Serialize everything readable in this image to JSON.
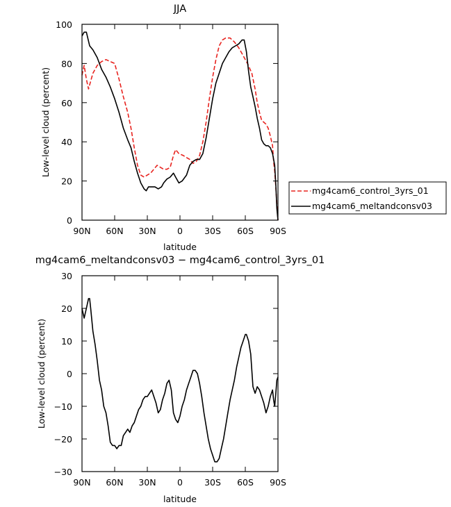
{
  "chart_data": [
    {
      "type": "line",
      "title": "JJA",
      "xlabel": "latitude",
      "ylabel": "Low-level cloud (percent)",
      "xlim": [
        90,
        -90
      ],
      "ylim": [
        0,
        100
      ],
      "xticks": [
        90,
        60,
        30,
        0,
        -30,
        -60,
        -90
      ],
      "xtick_labels": [
        "90N",
        "60N",
        "30N",
        "0",
        "30S",
        "60S",
        "90S"
      ],
      "yticks": [
        0,
        20,
        40,
        60,
        80,
        100
      ],
      "ytick_labels": [
        "0",
        "20",
        "40",
        "60",
        "80",
        "100"
      ],
      "legend_position": "right",
      "series": [
        {
          "name": "mg4cam6_control_3yrs_01",
          "color": "#e8231f",
          "style": "dashed",
          "points": [
            [
              90,
              74
            ],
            [
              88,
              79
            ],
            [
              86,
              72
            ],
            [
              84,
              67
            ],
            [
              82,
              71
            ],
            [
              80,
              75
            ],
            [
              76,
              79
            ],
            [
              72,
              81
            ],
            [
              68,
              82
            ],
            [
              64,
              81
            ],
            [
              60,
              80
            ],
            [
              56,
              72
            ],
            [
              52,
              63
            ],
            [
              48,
              55
            ],
            [
              45,
              47
            ],
            [
              42,
              37
            ],
            [
              39,
              28
            ],
            [
              36,
              23
            ],
            [
              33,
              22
            ],
            [
              30,
              23
            ],
            [
              27,
              24
            ],
            [
              24,
              26
            ],
            [
              21,
              28
            ],
            [
              18,
              27
            ],
            [
              15,
              26
            ],
            [
              12,
              26
            ],
            [
              9,
              27
            ],
            [
              6,
              33
            ],
            [
              4,
              36
            ],
            [
              1,
              34
            ],
            [
              -3,
              33
            ],
            [
              -6,
              32
            ],
            [
              -9,
              31
            ],
            [
              -12,
              29
            ],
            [
              -15,
              30
            ],
            [
              -18,
              33
            ],
            [
              -21,
              40
            ],
            [
              -24,
              50
            ],
            [
              -27,
              62
            ],
            [
              -30,
              73
            ],
            [
              -33,
              82
            ],
            [
              -36,
              89
            ],
            [
              -39,
              92
            ],
            [
              -42,
              93
            ],
            [
              -46,
              93
            ],
            [
              -50,
              91
            ],
            [
              -54,
              88
            ],
            [
              -58,
              84
            ],
            [
              -62,
              80
            ],
            [
              -66,
              75
            ],
            [
              -69,
              67
            ],
            [
              -71,
              60
            ],
            [
              -73,
              55
            ],
            [
              -75,
              51
            ],
            [
              -77,
              50
            ],
            [
              -79,
              49
            ],
            [
              -81,
              47
            ],
            [
              -83,
              43
            ],
            [
              -85,
              38
            ],
            [
              -86,
              30
            ],
            [
              -87,
              25
            ],
            [
              -88,
              17
            ],
            [
              -89,
              8
            ],
            [
              -90,
              0
            ]
          ]
        },
        {
          "name": "mg4cam6_meltandconsv03",
          "color": "#000000",
          "style": "solid",
          "points": [
            [
              90,
              94
            ],
            [
              88,
              96
            ],
            [
              86,
              96
            ],
            [
              83,
              89
            ],
            [
              80,
              87
            ],
            [
              76,
              83
            ],
            [
              72,
              77
            ],
            [
              68,
              73
            ],
            [
              64,
              68
            ],
            [
              60,
              62
            ],
            [
              56,
              55
            ],
            [
              52,
              47
            ],
            [
              48,
              41
            ],
            [
              45,
              37
            ],
            [
              42,
              30
            ],
            [
              39,
              24
            ],
            [
              36,
              19
            ],
            [
              33,
              16
            ],
            [
              31,
              15
            ],
            [
              29,
              17
            ],
            [
              26,
              17
            ],
            [
              23,
              17
            ],
            [
              20,
              16
            ],
            [
              17,
              17
            ],
            [
              15,
              19
            ],
            [
              12,
              21
            ],
            [
              9,
              22
            ],
            [
              6,
              24
            ],
            [
              4,
              22
            ],
            [
              1,
              19
            ],
            [
              -2,
              20
            ],
            [
              -6,
              23
            ],
            [
              -9,
              28
            ],
            [
              -12,
              30
            ],
            [
              -15,
              31
            ],
            [
              -18,
              31
            ],
            [
              -21,
              34
            ],
            [
              -24,
              42
            ],
            [
              -27,
              52
            ],
            [
              -30,
              62
            ],
            [
              -33,
              70
            ],
            [
              -36,
              75
            ],
            [
              -39,
              80
            ],
            [
              -42,
              83
            ],
            [
              -45,
              86
            ],
            [
              -48,
              88
            ],
            [
              -51,
              89
            ],
            [
              -54,
              90
            ],
            [
              -57,
              92
            ],
            [
              -59,
              92
            ],
            [
              -61,
              86
            ],
            [
              -63,
              76
            ],
            [
              -65,
              68
            ],
            [
              -67,
              63
            ],
            [
              -69,
              58
            ],
            [
              -71,
              52
            ],
            [
              -73,
              47
            ],
            [
              -75,
              41
            ],
            [
              -77,
              39
            ],
            [
              -79,
              38
            ],
            [
              -81,
              38
            ],
            [
              -83,
              37
            ],
            [
              -85,
              34
            ],
            [
              -87,
              28
            ],
            [
              -88,
              18
            ],
            [
              -89,
              6
            ],
            [
              -90,
              0
            ]
          ]
        }
      ]
    },
    {
      "type": "line",
      "title": "mg4cam6_meltandconsv03 − mg4cam6_control_3yrs_01",
      "xlabel": "latitude",
      "ylabel": "Low-level cloud (percent)",
      "xlim": [
        90,
        -90
      ],
      "ylim": [
        -30,
        30
      ],
      "xticks": [
        90,
        60,
        30,
        0,
        -30,
        -60,
        -90
      ],
      "xtick_labels": [
        "90N",
        "60N",
        "30N",
        "0",
        "30S",
        "60S",
        "90S"
      ],
      "yticks": [
        -30,
        -20,
        -10,
        0,
        10,
        20,
        30
      ],
      "ytick_labels": [
        "−30",
        "−20",
        "−10",
        "0",
        "10",
        "20",
        "30"
      ],
      "series": [
        {
          "color": "#000000",
          "style": "solid",
          "points": [
            [
              90,
              20
            ],
            [
              88,
              17
            ],
            [
              86,
              20
            ],
            [
              84,
              23
            ],
            [
              83,
              23
            ],
            [
              82,
              20
            ],
            [
              80,
              13
            ],
            [
              78,
              9
            ],
            [
              76,
              4
            ],
            [
              74,
              -2
            ],
            [
              72,
              -5
            ],
            [
              70,
              -10
            ],
            [
              68,
              -12
            ],
            [
              66,
              -16
            ],
            [
              64,
              -21
            ],
            [
              62,
              -22
            ],
            [
              60,
              -22
            ],
            [
              58,
              -23
            ],
            [
              56,
              -22
            ],
            [
              54,
              -22
            ],
            [
              52,
              -19
            ],
            [
              50,
              -18
            ],
            [
              48,
              -17
            ],
            [
              46,
              -18
            ],
            [
              44,
              -16
            ],
            [
              42,
              -15
            ],
            [
              40,
              -13
            ],
            [
              38,
              -11
            ],
            [
              36,
              -10
            ],
            [
              34,
              -8
            ],
            [
              32,
              -7
            ],
            [
              30,
              -7
            ],
            [
              28,
              -6
            ],
            [
              26,
              -5
            ],
            [
              24,
              -7
            ],
            [
              22,
              -9
            ],
            [
              20,
              -12
            ],
            [
              18,
              -11
            ],
            [
              16,
              -8
            ],
            [
              14,
              -6
            ],
            [
              12,
              -3
            ],
            [
              10,
              -2
            ],
            [
              8,
              -5
            ],
            [
              6,
              -12
            ],
            [
              4,
              -14
            ],
            [
              2,
              -15
            ],
            [
              0,
              -13
            ],
            [
              -2,
              -10
            ],
            [
              -4,
              -8
            ],
            [
              -6,
              -5
            ],
            [
              -8,
              -3
            ],
            [
              -10,
              -1
            ],
            [
              -12,
              1
            ],
            [
              -14,
              1
            ],
            [
              -16,
              0
            ],
            [
              -18,
              -3
            ],
            [
              -20,
              -7
            ],
            [
              -22,
              -12
            ],
            [
              -24,
              -16
            ],
            [
              -26,
              -20
            ],
            [
              -28,
              -23
            ],
            [
              -30,
              -25
            ],
            [
              -32,
              -27
            ],
            [
              -34,
              -27
            ],
            [
              -36,
              -26
            ],
            [
              -38,
              -23
            ],
            [
              -40,
              -20
            ],
            [
              -42,
              -16
            ],
            [
              -44,
              -12
            ],
            [
              -46,
              -8
            ],
            [
              -48,
              -5
            ],
            [
              -50,
              -2
            ],
            [
              -52,
              2
            ],
            [
              -54,
              5
            ],
            [
              -56,
              8
            ],
            [
              -58,
              10
            ],
            [
              -60,
              12
            ],
            [
              -61,
              12
            ],
            [
              -63,
              10
            ],
            [
              -65,
              6
            ],
            [
              -67,
              -4
            ],
            [
              -69,
              -6
            ],
            [
              -71,
              -4
            ],
            [
              -73,
              -5
            ],
            [
              -75,
              -7
            ],
            [
              -77,
              -9
            ],
            [
              -79,
              -12
            ],
            [
              -81,
              -10
            ],
            [
              -83,
              -7
            ],
            [
              -85,
              -5
            ],
            [
              -86,
              -8
            ],
            [
              -87,
              -10
            ],
            [
              -88,
              -6
            ],
            [
              -89,
              -2
            ],
            [
              -90,
              -1
            ]
          ]
        }
      ]
    }
  ]
}
